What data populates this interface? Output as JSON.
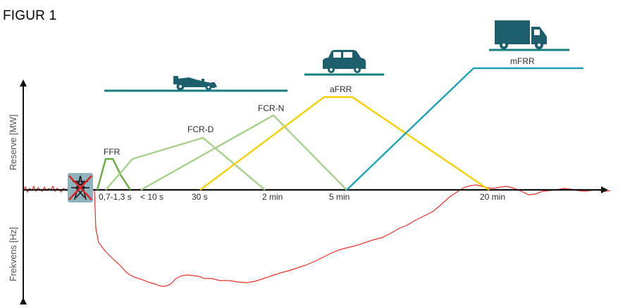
{
  "figure_title": "FIGUR 1",
  "axes": {
    "y_upper_label": "Reserve [MW]",
    "y_lower_label": "Frekvens [Hz]"
  },
  "time_labels": [
    "0,7-1,3 s",
    "< 10 s",
    "30 s",
    "2 min",
    "5 min",
    "20 min"
  ],
  "reserves": [
    {
      "name": "FFR",
      "color": "#6aab45"
    },
    {
      "name": "FCR-D",
      "color": "#a8d08d"
    },
    {
      "name": "FCR-N",
      "color": "#a8d08d"
    },
    {
      "name": "aFRR",
      "color": "#f5d000"
    },
    {
      "name": "mFRR",
      "color": "#1ba3b4"
    }
  ],
  "icons": {
    "outage": "crossed-out-power-pylon-icon",
    "fast": "race-car-icon",
    "medium": "car-icon",
    "slow": "truck-icon"
  },
  "colors": {
    "frequency_curve": "#e8302c",
    "platform": "#177d7d",
    "axis": "#111111",
    "pylon_box": "#8fb3bc"
  }
}
